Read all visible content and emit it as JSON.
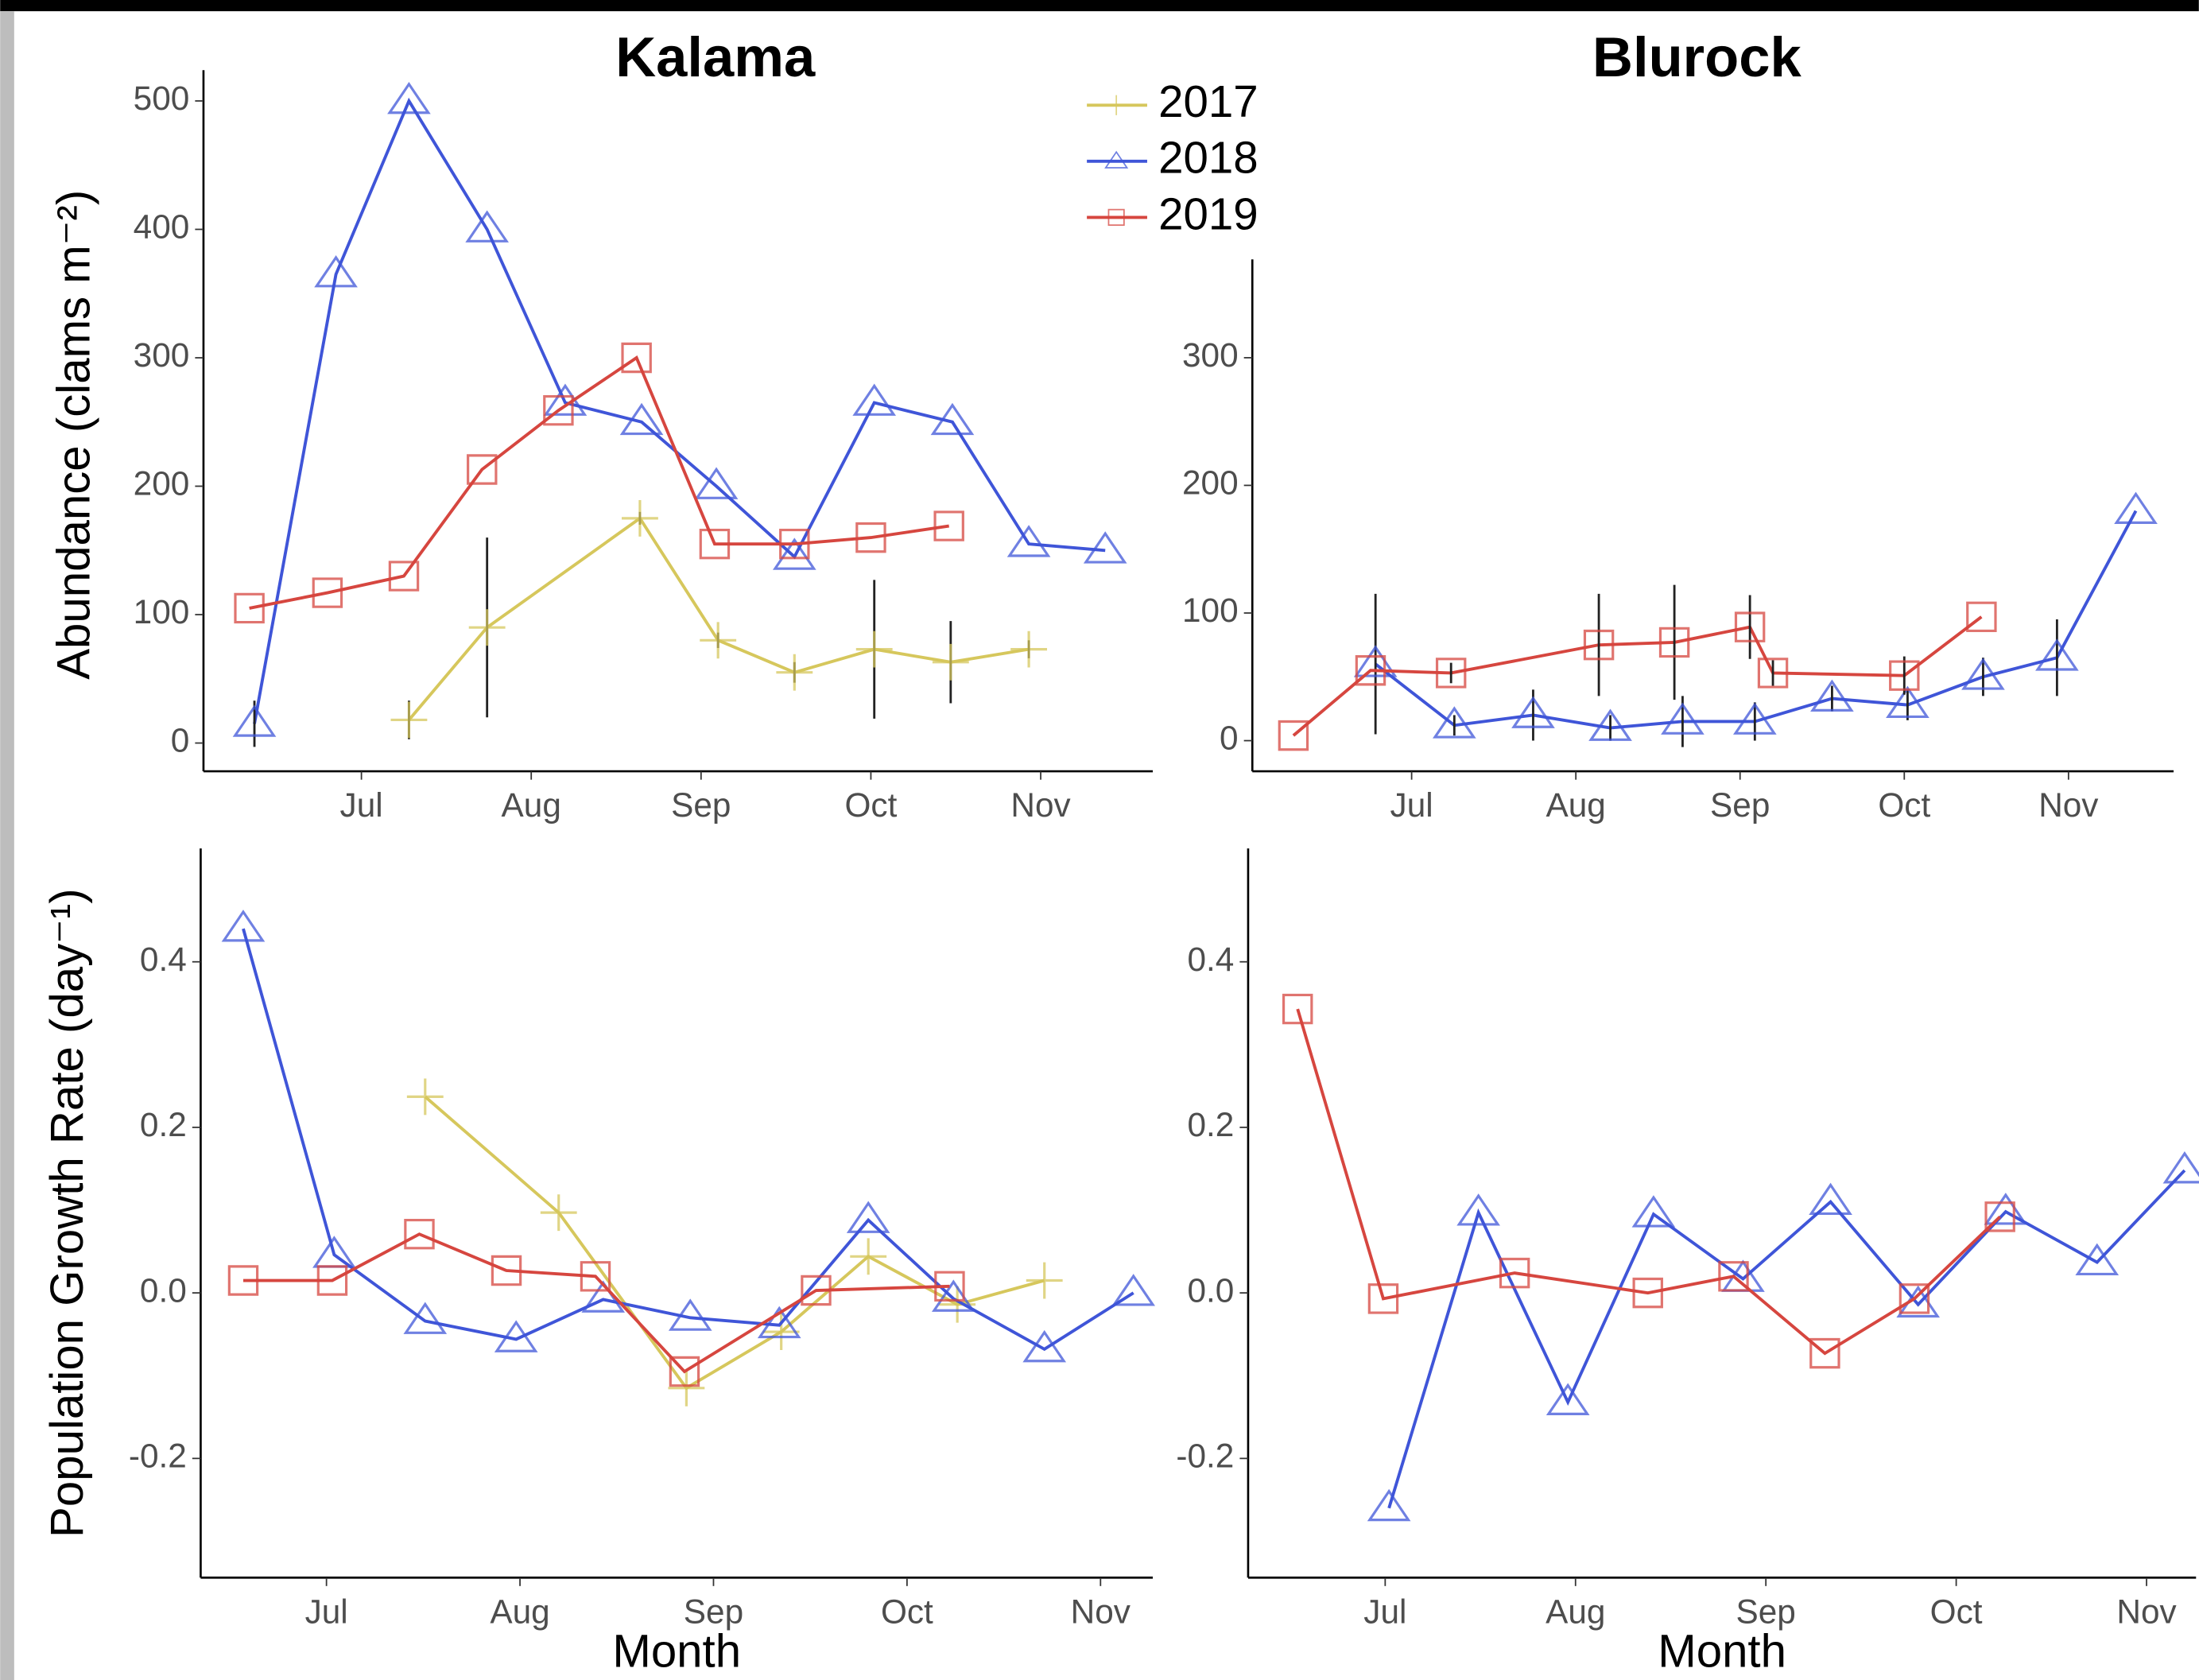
{
  "chart_data": [
    {
      "type": "line",
      "title": "Kalama",
      "ylabel": "Abundance (clams m⁻²)",
      "legend": "top-right",
      "xlim": [
        6.07,
        11.66
      ],
      "ylim": [
        -22,
        524
      ],
      "xticks": [
        {
          "value": 7,
          "label": "Jul"
        },
        {
          "value": 8,
          "label": "Aug"
        },
        {
          "value": 9,
          "label": "Sep"
        },
        {
          "value": 10,
          "label": "Oct"
        },
        {
          "value": 11,
          "label": "Nov"
        }
      ],
      "yticks": [
        0,
        100,
        200,
        300,
        400,
        500
      ],
      "series": [
        {
          "name": "2017",
          "color": "#d6c75c",
          "marker": "plus",
          "x": [
            7.28,
            7.74,
            8.64,
            9.1,
            9.55,
            10.02,
            10.47,
            10.93
          ],
          "values": [
            18,
            90,
            175,
            80,
            55,
            73,
            63,
            73
          ],
          "errors": [
            15,
            70,
            5,
            6,
            8,
            54,
            32,
            7
          ]
        },
        {
          "name": "2018",
          "color": "#3f55d8",
          "marker": "triangle",
          "x": [
            6.37,
            6.85,
            7.28,
            7.74,
            8.2,
            8.65,
            9.09,
            9.55,
            10.02,
            10.48,
            10.93,
            11.38
          ],
          "values": [
            15,
            365,
            500,
            400,
            265,
            250,
            200,
            145,
            265,
            250,
            155,
            150
          ],
          "errors": [
            18,
            null,
            null,
            null,
            null,
            null,
            null,
            null,
            null,
            null,
            null,
            null
          ]
        },
        {
          "name": "2019",
          "color": "#d6463f",
          "marker": "square",
          "x": [
            6.34,
            6.8,
            7.25,
            7.71,
            8.16,
            8.62,
            9.08,
            9.55,
            10.0,
            10.46
          ],
          "values": [
            105,
            117,
            130,
            213,
            259,
            300,
            155,
            155,
            160,
            169
          ]
        }
      ]
    },
    {
      "type": "line",
      "title": "Blurock",
      "xlim": [
        6.03,
        11.64
      ],
      "ylim": [
        -24,
        377
      ],
      "xticks": [
        {
          "value": 7,
          "label": "Jul"
        },
        {
          "value": 8,
          "label": "Aug"
        },
        {
          "value": 9,
          "label": "Sep"
        },
        {
          "value": 10,
          "label": "Oct"
        },
        {
          "value": 11,
          "label": "Nov"
        }
      ],
      "yticks": [
        0,
        100,
        200,
        300
      ],
      "series": [
        {
          "color": "#3f55d8",
          "marker": "triangle",
          "x": [
            6.78,
            7.26,
            7.74,
            8.21,
            8.65,
            9.09,
            9.56,
            10.02,
            10.48,
            10.93,
            11.41
          ],
          "values": [
            60,
            12,
            20,
            10,
            15,
            15,
            33,
            28,
            50,
            65,
            180
          ],
          "errors": [
            55,
            8,
            20,
            10,
            20,
            15,
            10,
            12,
            15,
            30,
            null
          ]
        },
        {
          "color": "#d6463f",
          "marker": "square",
          "x": [
            6.28,
            6.75,
            7.24,
            8.14,
            8.6,
            9.06,
            9.2,
            10.0,
            10.47
          ],
          "values": [
            4,
            55,
            53,
            75,
            77,
            89,
            53,
            51,
            97
          ],
          "errors": [
            null,
            null,
            8,
            40,
            45,
            25,
            10,
            15,
            null
          ]
        }
      ]
    },
    {
      "type": "line",
      "ylabel": "Population Growth Rate (day⁻¹)",
      "xlabel": "Month",
      "xlim": [
        6.35,
        11.27
      ],
      "ylim": [
        -0.344,
        0.537
      ],
      "xticks": [
        {
          "value": 7,
          "label": "Jul"
        },
        {
          "value": 8,
          "label": "Aug"
        },
        {
          "value": 9,
          "label": "Sep"
        },
        {
          "value": 10,
          "label": "Oct"
        },
        {
          "value": 11,
          "label": "Nov"
        }
      ],
      "yticks": [
        -0.2,
        {
          "value": 0,
          "label": "0.0"
        },
        0.2,
        0.4
      ],
      "series": [
        {
          "color": "#d6c75c",
          "marker": "plus",
          "x": [
            7.51,
            8.2,
            8.86,
            9.35,
            9.8,
            10.26,
            10.71
          ],
          "values": [
            0.237,
            0.097,
            -0.115,
            -0.047,
            0.044,
            -0.014,
            0.015
          ]
        },
        {
          "color": "#3f55d8",
          "marker": "triangle",
          "x": [
            6.57,
            7.04,
            7.51,
            7.98,
            8.43,
            8.88,
            9.34,
            9.8,
            10.24,
            10.71,
            11.17
          ],
          "values": [
            0.44,
            0.046,
            -0.034,
            -0.056,
            -0.008,
            -0.03,
            -0.039,
            0.088,
            -0.007,
            -0.068,
            0.0
          ]
        },
        {
          "color": "#d6463f",
          "marker": "square",
          "x": [
            6.57,
            7.03,
            7.48,
            7.93,
            8.39,
            8.85,
            9.53,
            10.22
          ],
          "values": [
            0.015,
            0.015,
            0.071,
            0.027,
            0.02,
            -0.095,
            0.003,
            0.008
          ]
        }
      ]
    },
    {
      "type": "line",
      "xlabel": "Month",
      "xlim": [
        6.28,
        11.26
      ],
      "ylim": [
        -0.344,
        0.537
      ],
      "xticks": [
        {
          "value": 7,
          "label": "Jul"
        },
        {
          "value": 8,
          "label": "Aug"
        },
        {
          "value": 9,
          "label": "Sep"
        },
        {
          "value": 10,
          "label": "Oct"
        },
        {
          "value": 11,
          "label": "Nov"
        }
      ],
      "yticks": [
        -0.2,
        {
          "value": 0,
          "label": "0.0"
        },
        0.2,
        0.4
      ],
      "series": [
        {
          "color": "#3f55d8",
          "marker": "triangle",
          "x": [
            7.02,
            7.49,
            7.96,
            8.41,
            8.88,
            9.34,
            9.8,
            10.26,
            10.74,
            11.2
          ],
          "values": [
            -0.26,
            0.097,
            -0.132,
            0.095,
            0.017,
            0.11,
            -0.014,
            0.098,
            0.037,
            0.148
          ]
        },
        {
          "color": "#d6463f",
          "marker": "square",
          "x": [
            6.54,
            6.99,
            7.68,
            8.38,
            8.83,
            9.31,
            9.78,
            10.23
          ],
          "values": [
            0.343,
            -0.007,
            0.024,
            0.0,
            0.02,
            -0.073,
            -0.007,
            0.092
          ]
        }
      ]
    }
  ]
}
